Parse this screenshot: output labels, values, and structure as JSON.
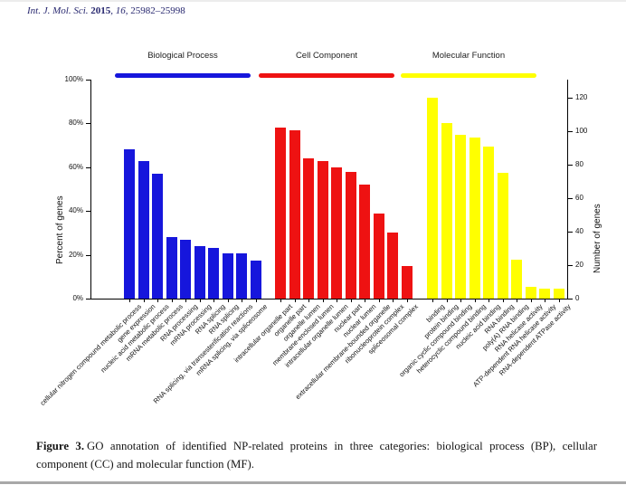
{
  "header": {
    "journal": "Int. J. Mol. Sci.",
    "year": "2015",
    "comma": ",",
    "volume": "16",
    "pages": "25982–25998"
  },
  "caption": {
    "label": "Figure 3.",
    "text": "GO annotation of identified NP-related proteins in three categories: biological process (BP), cellular component (CC) and molecular function (MF)."
  },
  "chart_data": {
    "type": "bar",
    "title": "",
    "grid": false,
    "left_axis": {
      "label": "Percent of genes",
      "ticks": [
        "0%",
        "20%",
        "40%",
        "60%",
        "80%",
        "100%"
      ],
      "range": [
        0,
        100
      ]
    },
    "right_axis": {
      "label": "Number of genes",
      "ticks": [
        0,
        20,
        40,
        60,
        80,
        100,
        120
      ],
      "range": [
        0,
        120
      ]
    },
    "groups": [
      {
        "name": "Biological Process",
        "color": "#1616dc",
        "unit": "percent",
        "bars": [
          {
            "label": "cellular nitrogen compound metabolic process",
            "value": 68
          },
          {
            "label": "gene expression",
            "value": 63
          },
          {
            "label": "nucleic acid metabolic process",
            "value": 57
          },
          {
            "label": "mRNA metabolic process",
            "value": 28
          },
          {
            "label": "RNA processing",
            "value": 27
          },
          {
            "label": "mRNA processing",
            "value": 24
          },
          {
            "label": "RNA splicing",
            "value": 23
          },
          {
            "label": "RNA splicing",
            "value": 20.5
          },
          {
            "label": "RNA splicing, via transesterification reactions",
            "value": 20.5
          },
          {
            "label": "mRNA splicing, via spliceosome",
            "value": 17.5
          }
        ]
      },
      {
        "name": "Cell Component",
        "color": "#ee1212",
        "unit": "percent",
        "bars": [
          {
            "label": "intracellular organelle part",
            "value": 78
          },
          {
            "label": "organelle part",
            "value": 77
          },
          {
            "label": "organelle lumen",
            "value": 64
          },
          {
            "label": "membrane-enclosed lumen",
            "value": 63
          },
          {
            "label": "intracellular organelle lumen",
            "value": 60
          },
          {
            "label": "nuclear part",
            "value": 58
          },
          {
            "label": "nuclear lumen",
            "value": 52
          },
          {
            "label": "extracellular membrane-bounded organelle",
            "value": 39
          },
          {
            "label": "ribonucleoprotein complex",
            "value": 30
          },
          {
            "label": "spliceosomal complex",
            "value": 15
          }
        ]
      },
      {
        "name": "Molecular Function",
        "color": "#ffff00",
        "unit": "genes",
        "bars": [
          {
            "label": "binding",
            "value": 120
          },
          {
            "label": "protein binding",
            "value": 105
          },
          {
            "label": "organic cyclic compound binding",
            "value": 98
          },
          {
            "label": "heterocyclic compound binding",
            "value": 96
          },
          {
            "label": "nucleic acid binding",
            "value": 91
          },
          {
            "label": "RNA binding",
            "value": 75
          },
          {
            "label": "poly(A) RNA binding",
            "value": 23
          },
          {
            "label": "RNA helicase activity",
            "value": 7
          },
          {
            "label": "ATP-dependent RNA helicase activity",
            "value": 6
          },
          {
            "label": "RNA-dependent ATPase activity",
            "value": 6
          }
        ]
      }
    ]
  }
}
